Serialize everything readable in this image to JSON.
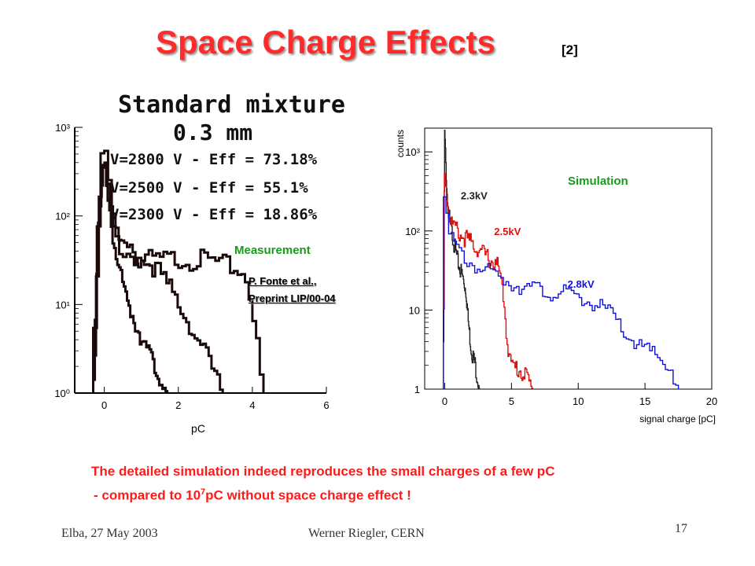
{
  "slide": {
    "title": "Space Charge Effects",
    "title_ref": "[2]",
    "caption_line1": "The detailed simulation indeed reproduces the small charges of a few pC",
    "caption_line2_pre": "- compared to 10",
    "caption_line2_sup": "7",
    "caption_line2_post": "pC without space charge effect !",
    "footer_left": "Elba, 27 May 2003",
    "footer_center": "Werner Riegler, CERN",
    "page_number": "17",
    "colors": {
      "title": "#ff2a2a",
      "caption": "#ff1a1a",
      "label_green": "#1a9a1a"
    }
  },
  "chart_data": [
    {
      "type": "line",
      "title": "Standard mixture",
      "subtitle": "0.3 mm",
      "label": "Measurement",
      "reference_line1": "P. Fonte et al.,",
      "reference_line2": "Preprint LIP/00-04",
      "xlabel": "pC",
      "ylabel": "",
      "xlim": [
        -0.8,
        6
      ],
      "ylim": [
        0,
        3
      ],
      "log_y": true,
      "xticks": [
        "0",
        "2",
        "4",
        "6"
      ],
      "yticks": [
        "10⁰",
        "10¹",
        "10²",
        "10³"
      ],
      "legend": [
        "V=2800 V  -  Eff = 73.18%",
        "V=2500 V  -  Eff = 55.1%",
        "V=2300 V  -  Eff = 18.86%"
      ],
      "series": [
        {
          "name": "V=2800 V  -  Eff = 73.18%",
          "color": "#1a0a0a",
          "x": [
            -0.3,
            -0.1,
            0.0,
            0.1,
            0.2,
            0.3,
            0.5,
            0.8,
            1.0,
            1.3,
            1.6,
            2.0,
            2.4,
            2.8,
            3.2,
            3.6,
            3.9,
            4.1,
            4.3
          ],
          "y": [
            0.0,
            2.5,
            2.78,
            2.6,
            2.1,
            1.8,
            1.6,
            1.55,
            1.52,
            1.5,
            1.5,
            1.52,
            1.5,
            1.5,
            1.45,
            1.4,
            1.3,
            0.7,
            0.0
          ]
        },
        {
          "name": "V=2500 V  -  Eff = 55.1%",
          "color": "#1a0a0a",
          "x": [
            -0.3,
            -0.1,
            0.0,
            0.15,
            0.3,
            0.5,
            0.8,
            1.0,
            1.3,
            1.6,
            1.9,
            2.2,
            2.5,
            2.8,
            3.0,
            3.2
          ],
          "y": [
            0.0,
            2.4,
            2.75,
            2.3,
            1.85,
            1.65,
            1.55,
            1.5,
            1.45,
            1.3,
            1.1,
            0.9,
            0.6,
            0.4,
            0.2,
            0.0
          ]
        },
        {
          "name": "V=2300 V  -  Eff = 18.86%",
          "color": "#1a0a0a",
          "x": [
            -0.3,
            -0.15,
            0.0,
            0.1,
            0.2,
            0.35,
            0.5,
            0.7,
            0.9,
            1.1,
            1.3,
            1.5,
            1.7
          ],
          "y": [
            0.0,
            1.8,
            2.6,
            2.3,
            1.9,
            1.5,
            1.2,
            0.95,
            0.75,
            0.55,
            0.35,
            0.2,
            0.0
          ]
        }
      ]
    },
    {
      "type": "line",
      "label": "Simulation",
      "xlabel": "signal charge [pC]",
      "ylabel": "counts",
      "xlim": [
        -1.5,
        20
      ],
      "ylim": [
        0,
        3.3
      ],
      "log_y": true,
      "xticks": [
        "0",
        "5",
        "10",
        "15",
        "20"
      ],
      "yticks": [
        "1",
        "10",
        "10²",
        "10³"
      ],
      "series": [
        {
          "name": "2.3kV",
          "color": "#222222",
          "x": [
            -0.1,
            0.0,
            0.2,
            0.4,
            0.7,
            1.0,
            1.3,
            1.6,
            1.8,
            2.0,
            2.3,
            2.6
          ],
          "y": [
            0.0,
            3.25,
            2.4,
            2.1,
            1.85,
            1.6,
            1.45,
            1.25,
            0.8,
            0.5,
            0.3,
            0.0
          ]
        },
        {
          "name": "2.5kV",
          "color": "#e01010",
          "x": [
            -0.1,
            0.0,
            0.3,
            0.7,
            1.2,
            2.0,
            3.0,
            4.0,
            4.4,
            4.7,
            5.0,
            6.0,
            6.6
          ],
          "y": [
            0.0,
            2.8,
            2.2,
            2.05,
            1.95,
            1.85,
            1.7,
            1.55,
            1.2,
            0.6,
            0.3,
            0.2,
            0.0
          ]
        },
        {
          "name": "2.8kV",
          "color": "#1010e0",
          "x": [
            -0.1,
            0.0,
            0.3,
            0.8,
            1.5,
            3.0,
            5.0,
            7.0,
            9.0,
            11.0,
            12.5,
            13.5,
            15.0,
            16.0,
            17.0,
            17.5
          ],
          "y": [
            0.0,
            2.6,
            1.95,
            1.8,
            1.65,
            1.5,
            1.35,
            1.25,
            1.2,
            1.1,
            0.95,
            0.7,
            0.5,
            0.4,
            0.25,
            0.0
          ]
        }
      ]
    }
  ]
}
